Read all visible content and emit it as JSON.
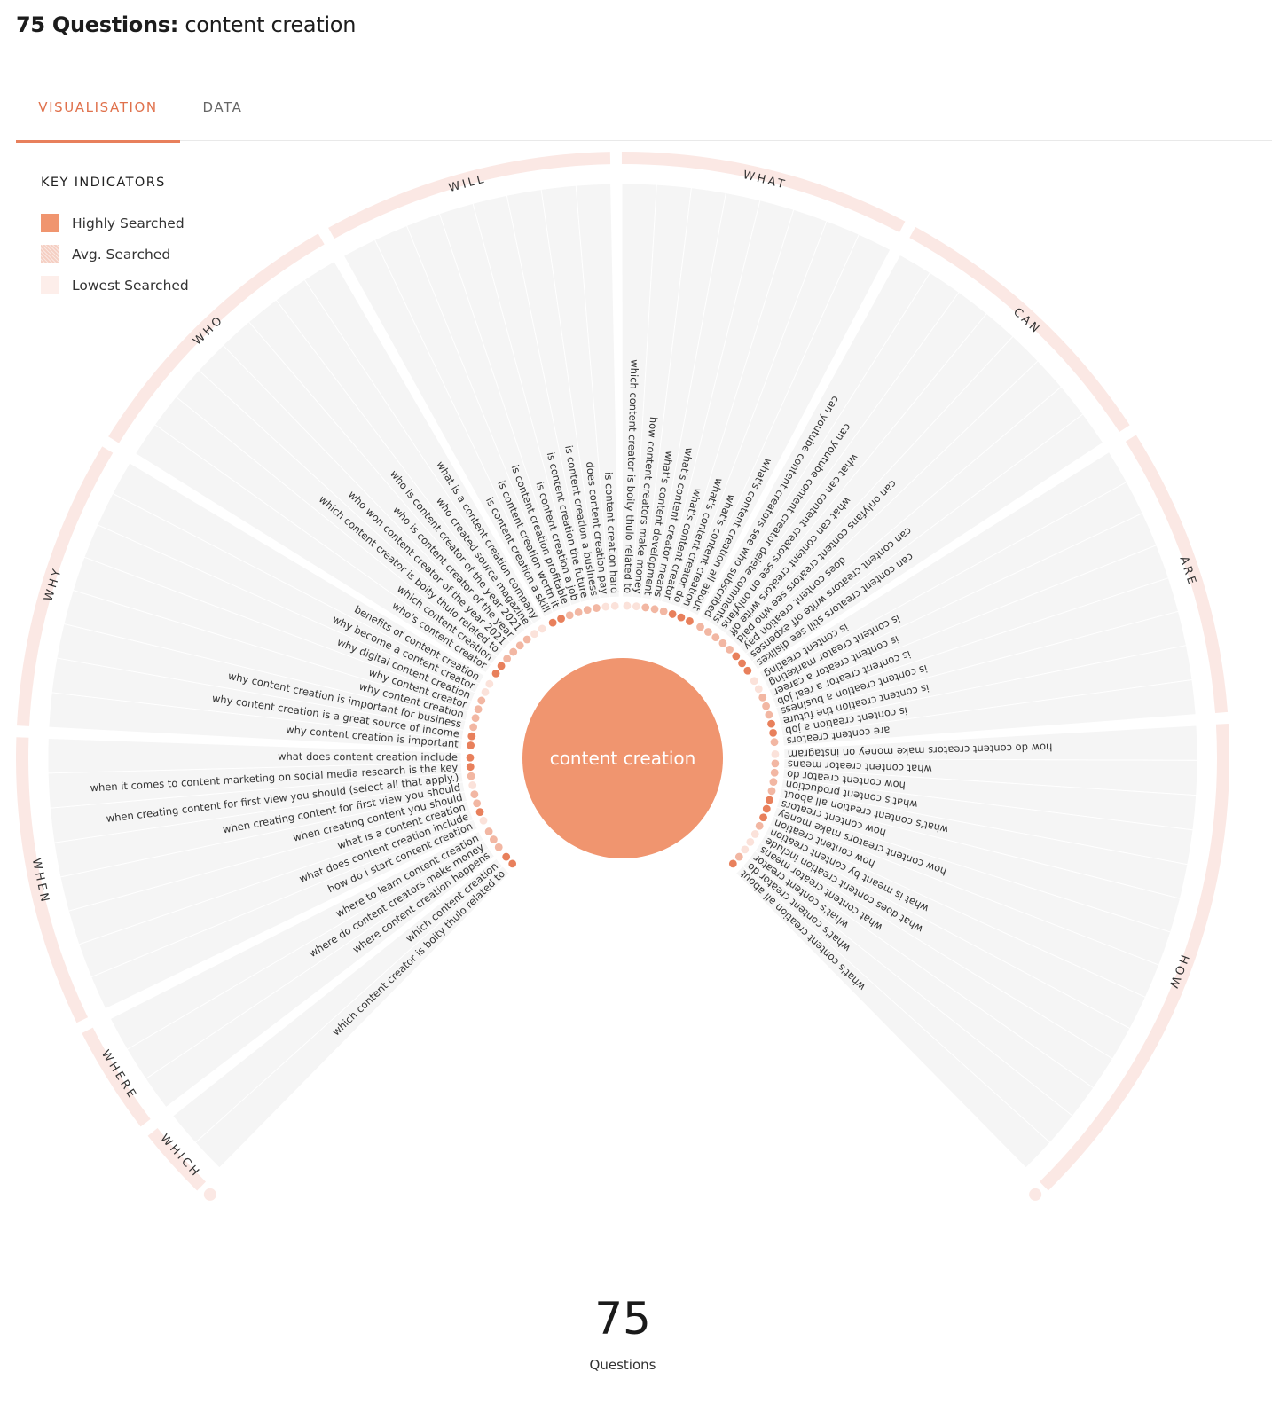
{
  "header": {
    "count_bold": "75 Questions:",
    "keyword": "content creation"
  },
  "tabs": [
    {
      "label": "VISUALISATION",
      "active": true
    },
    {
      "label": "DATA",
      "active": false
    }
  ],
  "legend": {
    "title": "KEY INDICATORS",
    "items": [
      {
        "label": "Highly Searched",
        "color": "#f0956f"
      },
      {
        "label": "Avg. Searched",
        "color": "#f5cfc3"
      },
      {
        "label": "Lowest Searched",
        "color": "#fdeeea"
      }
    ]
  },
  "center": {
    "label": "content creation",
    "color": "#f0956f"
  },
  "summary": {
    "count": "75",
    "label": "Questions"
  },
  "colors": {
    "ring": "#fbe8e4",
    "wedge": "#f5f5f5",
    "high": "#e8805c",
    "mid": "#f2b7a3",
    "low": "#fbe2da"
  },
  "categories": [
    {
      "name": "WHICH",
      "questions": [
        {
          "text": "which content creator is boity thulo related to",
          "level": "high"
        },
        {
          "text": "which content creation",
          "level": "high"
        }
      ]
    },
    {
      "name": "WHERE",
      "questions": [
        {
          "text": "where content creation happens",
          "level": "mid"
        },
        {
          "text": "where do content creators make money",
          "level": "mid"
        },
        {
          "text": "where to learn content creation",
          "level": "mid"
        }
      ]
    },
    {
      "name": "WHEN",
      "questions": [
        {
          "text": "how do i start content creation",
          "level": "low"
        },
        {
          "text": "what does content creation include",
          "level": "high"
        },
        {
          "text": "what is a content creation",
          "level": "mid"
        },
        {
          "text": "when creating content you should",
          "level": "mid"
        },
        {
          "text": "when creating content for first view you should",
          "level": "low"
        },
        {
          "text": "when creating content for first view you should (select all that apply.)",
          "level": "mid"
        },
        {
          "text": "when it comes to content marketing on social media research is the key",
          "level": "high"
        },
        {
          "text": "what does content creation include",
          "level": "high"
        }
      ]
    },
    {
      "name": "WHY",
      "questions": [
        {
          "text": "why content creation is important",
          "level": "high"
        },
        {
          "text": "why content creation is a great source of income",
          "level": "high"
        },
        {
          "text": "why content creation is important for business",
          "level": "mid"
        },
        {
          "text": "why content creation",
          "level": "mid"
        },
        {
          "text": "why content creator",
          "level": "mid"
        },
        {
          "text": "why digital content creation",
          "level": "mid"
        },
        {
          "text": "why become a content creator",
          "level": "low"
        },
        {
          "text": "benefits of content creation",
          "level": "low"
        }
      ]
    },
    {
      "name": "WHO",
      "questions": [
        {
          "text": "who's content creator",
          "level": "high"
        },
        {
          "text": "which content creation",
          "level": "high"
        },
        {
          "text": "which content creator is boity thulo related to",
          "level": "mid"
        },
        {
          "text": "who won content creator of the year 2021",
          "level": "mid"
        },
        {
          "text": "who is content creator of the year",
          "level": "mid"
        },
        {
          "text": "who is content creator of the year 2021",
          "level": "mid"
        },
        {
          "text": "who created source magazine",
          "level": "low"
        },
        {
          "text": "what is a content creation company",
          "level": "low"
        }
      ]
    },
    {
      "name": "WILL",
      "questions": [
        {
          "text": "is content creation a skill",
          "level": "high"
        },
        {
          "text": "is content creation worth it",
          "level": "high"
        },
        {
          "text": "is content creation profitable",
          "level": "mid"
        },
        {
          "text": "is content creation a job",
          "level": "mid"
        },
        {
          "text": "is content creation the future",
          "level": "mid"
        },
        {
          "text": "is content creation a business",
          "level": "mid"
        },
        {
          "text": "does content creation pay",
          "level": "low"
        },
        {
          "text": "is content creation hard",
          "level": "low"
        }
      ]
    },
    {
      "name": "WHAT",
      "questions": [
        {
          "text": "which content creator is boity thulo related to",
          "level": "low"
        },
        {
          "text": "how content creators make money",
          "level": "low"
        },
        {
          "text": "what's content development",
          "level": "mid"
        },
        {
          "text": "what's content creator means",
          "level": "mid"
        },
        {
          "text": "what's content creator",
          "level": "mid"
        },
        {
          "text": "what's content creator do",
          "level": "high"
        },
        {
          "text": "what's content creation",
          "level": "high"
        },
        {
          "text": "what's content creation all about",
          "level": "high"
        }
      ]
    },
    {
      "name": "CAN",
      "questions": [
        {
          "text": "can youtube content creators see who subscribed",
          "level": "mid"
        },
        {
          "text": "can youtube content creator delete comments",
          "level": "mid"
        },
        {
          "text": "what can content creators see on onlyfans",
          "level": "mid"
        },
        {
          "text": "what can content creators write off",
          "level": "mid"
        },
        {
          "text": "can onlyfans content creators see who paid",
          "level": "mid"
        },
        {
          "text": "does content creation pay",
          "level": "high"
        },
        {
          "text": "can content creators write off expenses",
          "level": "high"
        },
        {
          "text": "can content creators still see dislikes",
          "level": "high"
        }
      ]
    },
    {
      "name": "ARE",
      "questions": [
        {
          "text": "is content creating",
          "level": "low"
        },
        {
          "text": "is content creator marketing",
          "level": "low"
        },
        {
          "text": "is content creator a career",
          "level": "mid"
        },
        {
          "text": "is content creator a real job",
          "level": "mid"
        },
        {
          "text": "is content creation a business",
          "level": "mid"
        },
        {
          "text": "is content creation the future",
          "level": "high"
        },
        {
          "text": "is content creation a job",
          "level": "high"
        },
        {
          "text": "are content creators",
          "level": "mid"
        }
      ]
    },
    {
      "name": "HOW",
      "questions": [
        {
          "text": "how do content creators make money on instagram",
          "level": "low"
        },
        {
          "text": "what content creator means",
          "level": "mid"
        },
        {
          "text": "how content creator do",
          "level": "mid"
        },
        {
          "text": "what's content production",
          "level": "mid"
        },
        {
          "text": "what's content creation all about",
          "level": "mid"
        },
        {
          "text": "how content creators",
          "level": "high"
        },
        {
          "text": "how content creators make money",
          "level": "high"
        },
        {
          "text": "how content creation",
          "level": "high"
        },
        {
          "text": "what is meant by content creation",
          "level": "mid"
        },
        {
          "text": "what does content creation include",
          "level": "low"
        },
        {
          "text": "what content creator means",
          "level": "low"
        },
        {
          "text": "what's content creator",
          "level": "low"
        },
        {
          "text": "what's content creator do",
          "level": "mid"
        },
        {
          "text": "what's content creation all about",
          "level": "high"
        }
      ]
    }
  ]
}
